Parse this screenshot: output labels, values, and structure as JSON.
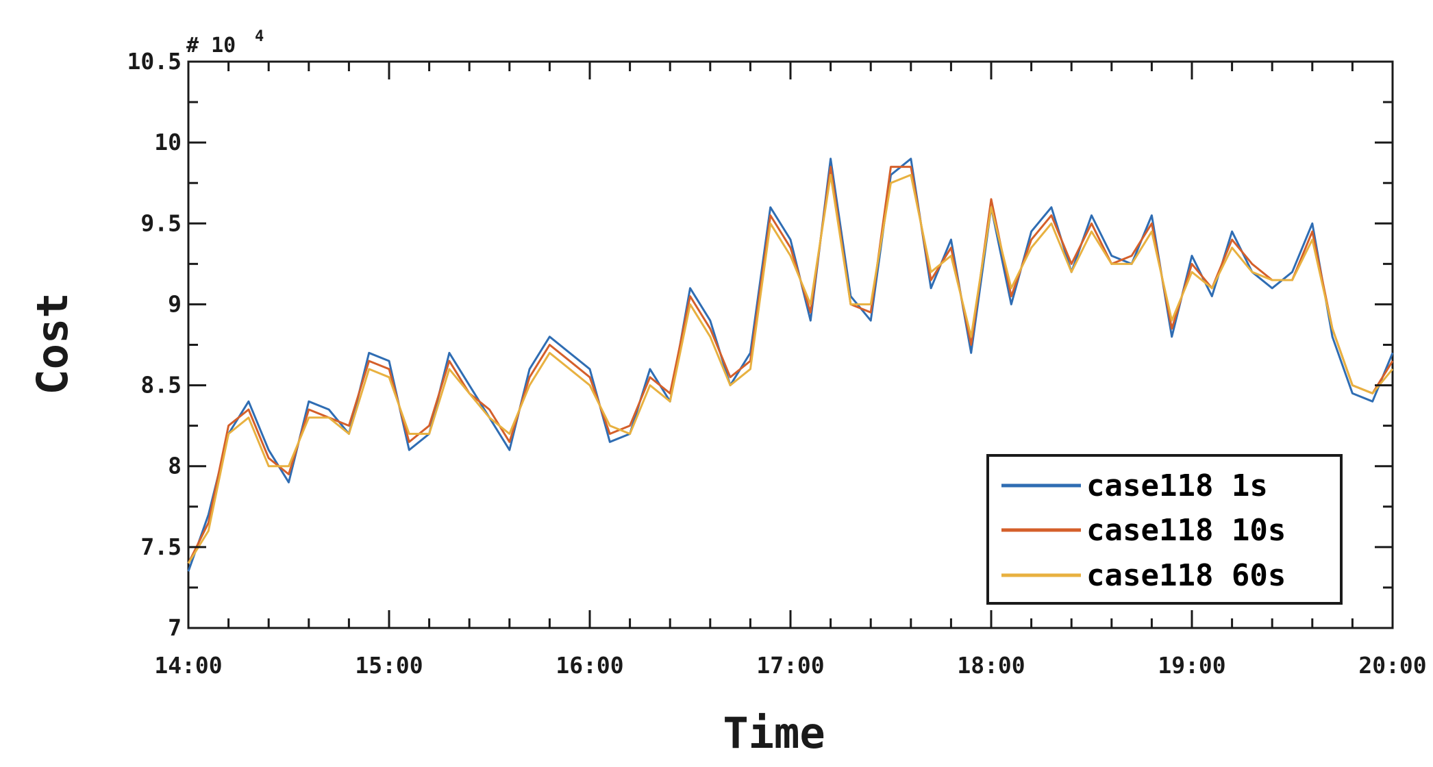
{
  "chart_data": {
    "type": "line",
    "title": "",
    "xlabel": "Time",
    "ylabel": "Cost",
    "y_multiplier_label": "# 10",
    "y_multiplier_exponent": "4",
    "x_ticks": [
      "14:00",
      "15:00",
      "16:00",
      "17:00",
      "18:00",
      "19:00",
      "20:00"
    ],
    "y_ticks": [
      "7",
      "7.5",
      "8",
      "8.5",
      "9",
      "9.5",
      "10",
      "10.5"
    ],
    "xlim": [
      14.0,
      20.0
    ],
    "ylim": [
      7.0,
      10.5
    ],
    "legend_position": "bottom-right",
    "grid": false,
    "x": [
      14.0,
      14.1,
      14.2,
      14.3,
      14.4,
      14.5,
      14.6,
      14.7,
      14.8,
      14.9,
      15.0,
      15.1,
      15.2,
      15.3,
      15.4,
      15.5,
      15.6,
      15.7,
      15.8,
      15.9,
      16.0,
      16.1,
      16.2,
      16.3,
      16.4,
      16.5,
      16.6,
      16.7,
      16.8,
      16.9,
      17.0,
      17.1,
      17.2,
      17.3,
      17.4,
      17.5,
      17.6,
      17.7,
      17.8,
      17.9,
      18.0,
      18.1,
      18.2,
      18.3,
      18.4,
      18.5,
      18.6,
      18.7,
      18.8,
      18.9,
      19.0,
      19.1,
      19.2,
      19.3,
      19.4,
      19.5,
      19.6,
      19.7,
      19.8,
      19.9,
      20.0
    ],
    "series": [
      {
        "name": "case118 1s",
        "color": "#2f6db3",
        "values": [
          7.35,
          7.7,
          8.2,
          8.4,
          8.1,
          7.9,
          8.4,
          8.35,
          8.2,
          8.7,
          8.65,
          8.1,
          8.2,
          8.7,
          8.5,
          8.3,
          8.1,
          8.6,
          8.8,
          8.7,
          8.6,
          8.15,
          8.2,
          8.6,
          8.4,
          9.1,
          8.9,
          8.5,
          8.7,
          9.6,
          9.4,
          8.9,
          9.9,
          9.05,
          8.9,
          9.8,
          9.9,
          9.1,
          9.4,
          8.7,
          9.6,
          9.0,
          9.45,
          9.6,
          9.2,
          9.55,
          9.3,
          9.25,
          9.55,
          8.8,
          9.3,
          9.05,
          9.45,
          9.2,
          9.1,
          9.2,
          9.5,
          8.8,
          8.45,
          8.4,
          8.7
        ]
      },
      {
        "name": "case118 10s",
        "color": "#d45f2a",
        "values": [
          7.4,
          7.65,
          8.25,
          8.35,
          8.05,
          7.95,
          8.35,
          8.3,
          8.25,
          8.65,
          8.6,
          8.15,
          8.25,
          8.65,
          8.45,
          8.35,
          8.15,
          8.55,
          8.75,
          8.65,
          8.55,
          8.2,
          8.25,
          8.55,
          8.45,
          9.05,
          8.85,
          8.55,
          8.65,
          9.55,
          9.35,
          8.95,
          9.85,
          9.0,
          8.95,
          9.85,
          9.85,
          9.15,
          9.35,
          8.75,
          9.65,
          9.05,
          9.4,
          9.55,
          9.25,
          9.5,
          9.25,
          9.3,
          9.5,
          8.85,
          9.25,
          9.1,
          9.4,
          9.25,
          9.15,
          9.15,
          9.45,
          8.85,
          8.5,
          8.45,
          8.65
        ]
      },
      {
        "name": "case118 60s",
        "color": "#e8b140",
        "values": [
          7.4,
          7.6,
          8.2,
          8.3,
          8.0,
          8.0,
          8.3,
          8.3,
          8.2,
          8.6,
          8.55,
          8.2,
          8.2,
          8.6,
          8.45,
          8.3,
          8.2,
          8.5,
          8.7,
          8.6,
          8.5,
          8.25,
          8.2,
          8.5,
          8.4,
          9.0,
          8.8,
          8.5,
          8.6,
          9.5,
          9.3,
          9.0,
          9.8,
          9.0,
          9.0,
          9.75,
          9.8,
          9.2,
          9.3,
          8.8,
          9.6,
          9.1,
          9.35,
          9.5,
          9.2,
          9.45,
          9.25,
          9.25,
          9.45,
          8.9,
          9.2,
          9.1,
          9.35,
          9.2,
          9.15,
          9.15,
          9.4,
          8.85,
          8.5,
          8.45,
          8.6
        ]
      }
    ]
  }
}
